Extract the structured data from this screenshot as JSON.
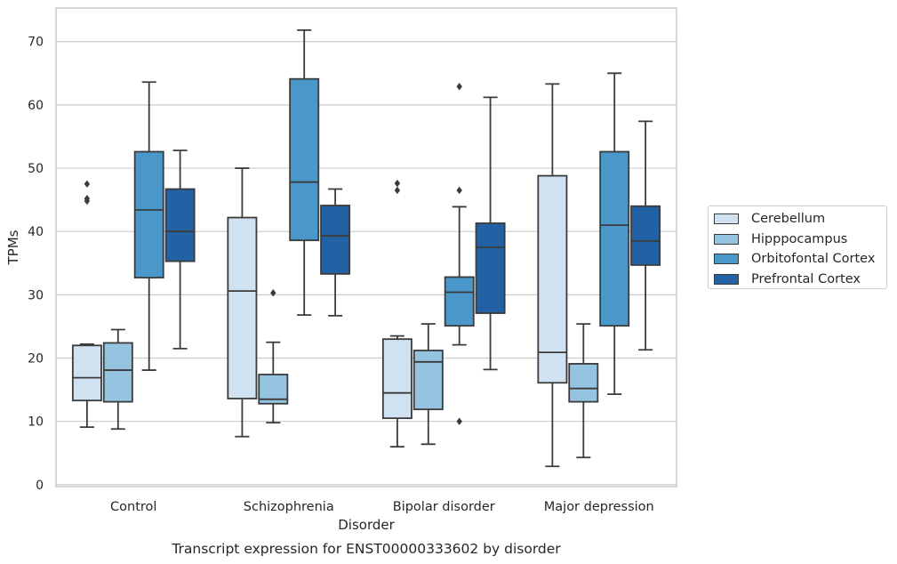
{
  "chart_data": {
    "type": "box",
    "title": "Transcript expression for ENST00000333602 by disorder",
    "xlabel": "Disorder",
    "ylabel": "TPMs",
    "ylim": [
      -0.3,
      75.3
    ],
    "yticks": [
      0,
      10,
      20,
      30,
      40,
      50,
      60,
      70
    ],
    "grid": "horizontal",
    "legend_position": "right",
    "categories": [
      "Control",
      "Schizophrenia",
      "Bipolar disorder",
      "Major depression"
    ],
    "series": [
      {
        "name": "Cerebellum",
        "color": "#d0e1f2",
        "boxes": [
          {
            "whisker_low": 9.1,
            "q1": 13.3,
            "median": 16.9,
            "q3": 22.0,
            "whisker_high": 22.2,
            "outliers": [
              47.5,
              45.2,
              44.8
            ]
          },
          {
            "whisker_low": 7.6,
            "q1": 13.6,
            "median": 30.6,
            "q3": 42.2,
            "whisker_high": 50.0,
            "outliers": []
          },
          {
            "whisker_low": 6.0,
            "q1": 10.5,
            "median": 14.5,
            "q3": 23.0,
            "whisker_high": 23.5,
            "outliers": [
              47.6,
              46.5
            ]
          },
          {
            "whisker_low": 2.9,
            "q1": 16.1,
            "median": 20.9,
            "q3": 48.8,
            "whisker_high": 63.3,
            "outliers": []
          }
        ]
      },
      {
        "name": "Hipppocampus",
        "color": "#94c4df",
        "boxes": [
          {
            "whisker_low": 8.8,
            "q1": 13.1,
            "median": 18.1,
            "q3": 22.4,
            "whisker_high": 24.5,
            "outliers": []
          },
          {
            "whisker_low": 9.8,
            "q1": 12.8,
            "median": 13.5,
            "q3": 17.4,
            "whisker_high": 22.5,
            "outliers": [
              30.3
            ]
          },
          {
            "whisker_low": 6.4,
            "q1": 11.9,
            "median": 19.4,
            "q3": 21.2,
            "whisker_high": 25.4,
            "outliers": []
          },
          {
            "whisker_low": 4.3,
            "q1": 13.1,
            "median": 15.2,
            "q3": 19.1,
            "whisker_high": 25.4,
            "outliers": []
          }
        ]
      },
      {
        "name": "Orbitofontal Cortex",
        "color": "#4a98c9",
        "boxes": [
          {
            "whisker_low": 18.1,
            "q1": 32.7,
            "median": 43.4,
            "q3": 52.6,
            "whisker_high": 63.6,
            "outliers": []
          },
          {
            "whisker_low": 26.8,
            "q1": 38.6,
            "median": 47.8,
            "q3": 64.1,
            "whisker_high": 71.8,
            "outliers": []
          },
          {
            "whisker_low": 22.1,
            "q1": 25.1,
            "median": 30.4,
            "q3": 32.8,
            "whisker_high": 43.9,
            "outliers": [
              62.9,
              46.5,
              10.0
            ]
          },
          {
            "whisker_low": 14.3,
            "q1": 25.1,
            "median": 41.0,
            "q3": 52.6,
            "whisker_high": 65.0,
            "outliers": []
          }
        ]
      },
      {
        "name": "Prefrontal Cortex",
        "color": "#2261a3",
        "boxes": [
          {
            "whisker_low": 21.5,
            "q1": 35.3,
            "median": 40.0,
            "q3": 46.7,
            "whisker_high": 52.8,
            "outliers": []
          },
          {
            "whisker_low": 26.7,
            "q1": 33.3,
            "median": 39.3,
            "q3": 44.1,
            "whisker_high": 46.7,
            "outliers": []
          },
          {
            "whisker_low": 18.2,
            "q1": 27.1,
            "median": 37.5,
            "q3": 41.3,
            "whisker_high": 61.2,
            "outliers": []
          },
          {
            "whisker_low": 21.3,
            "q1": 34.7,
            "median": 38.5,
            "q3": 44.0,
            "whisker_high": 57.4,
            "outliers": []
          }
        ]
      }
    ]
  }
}
